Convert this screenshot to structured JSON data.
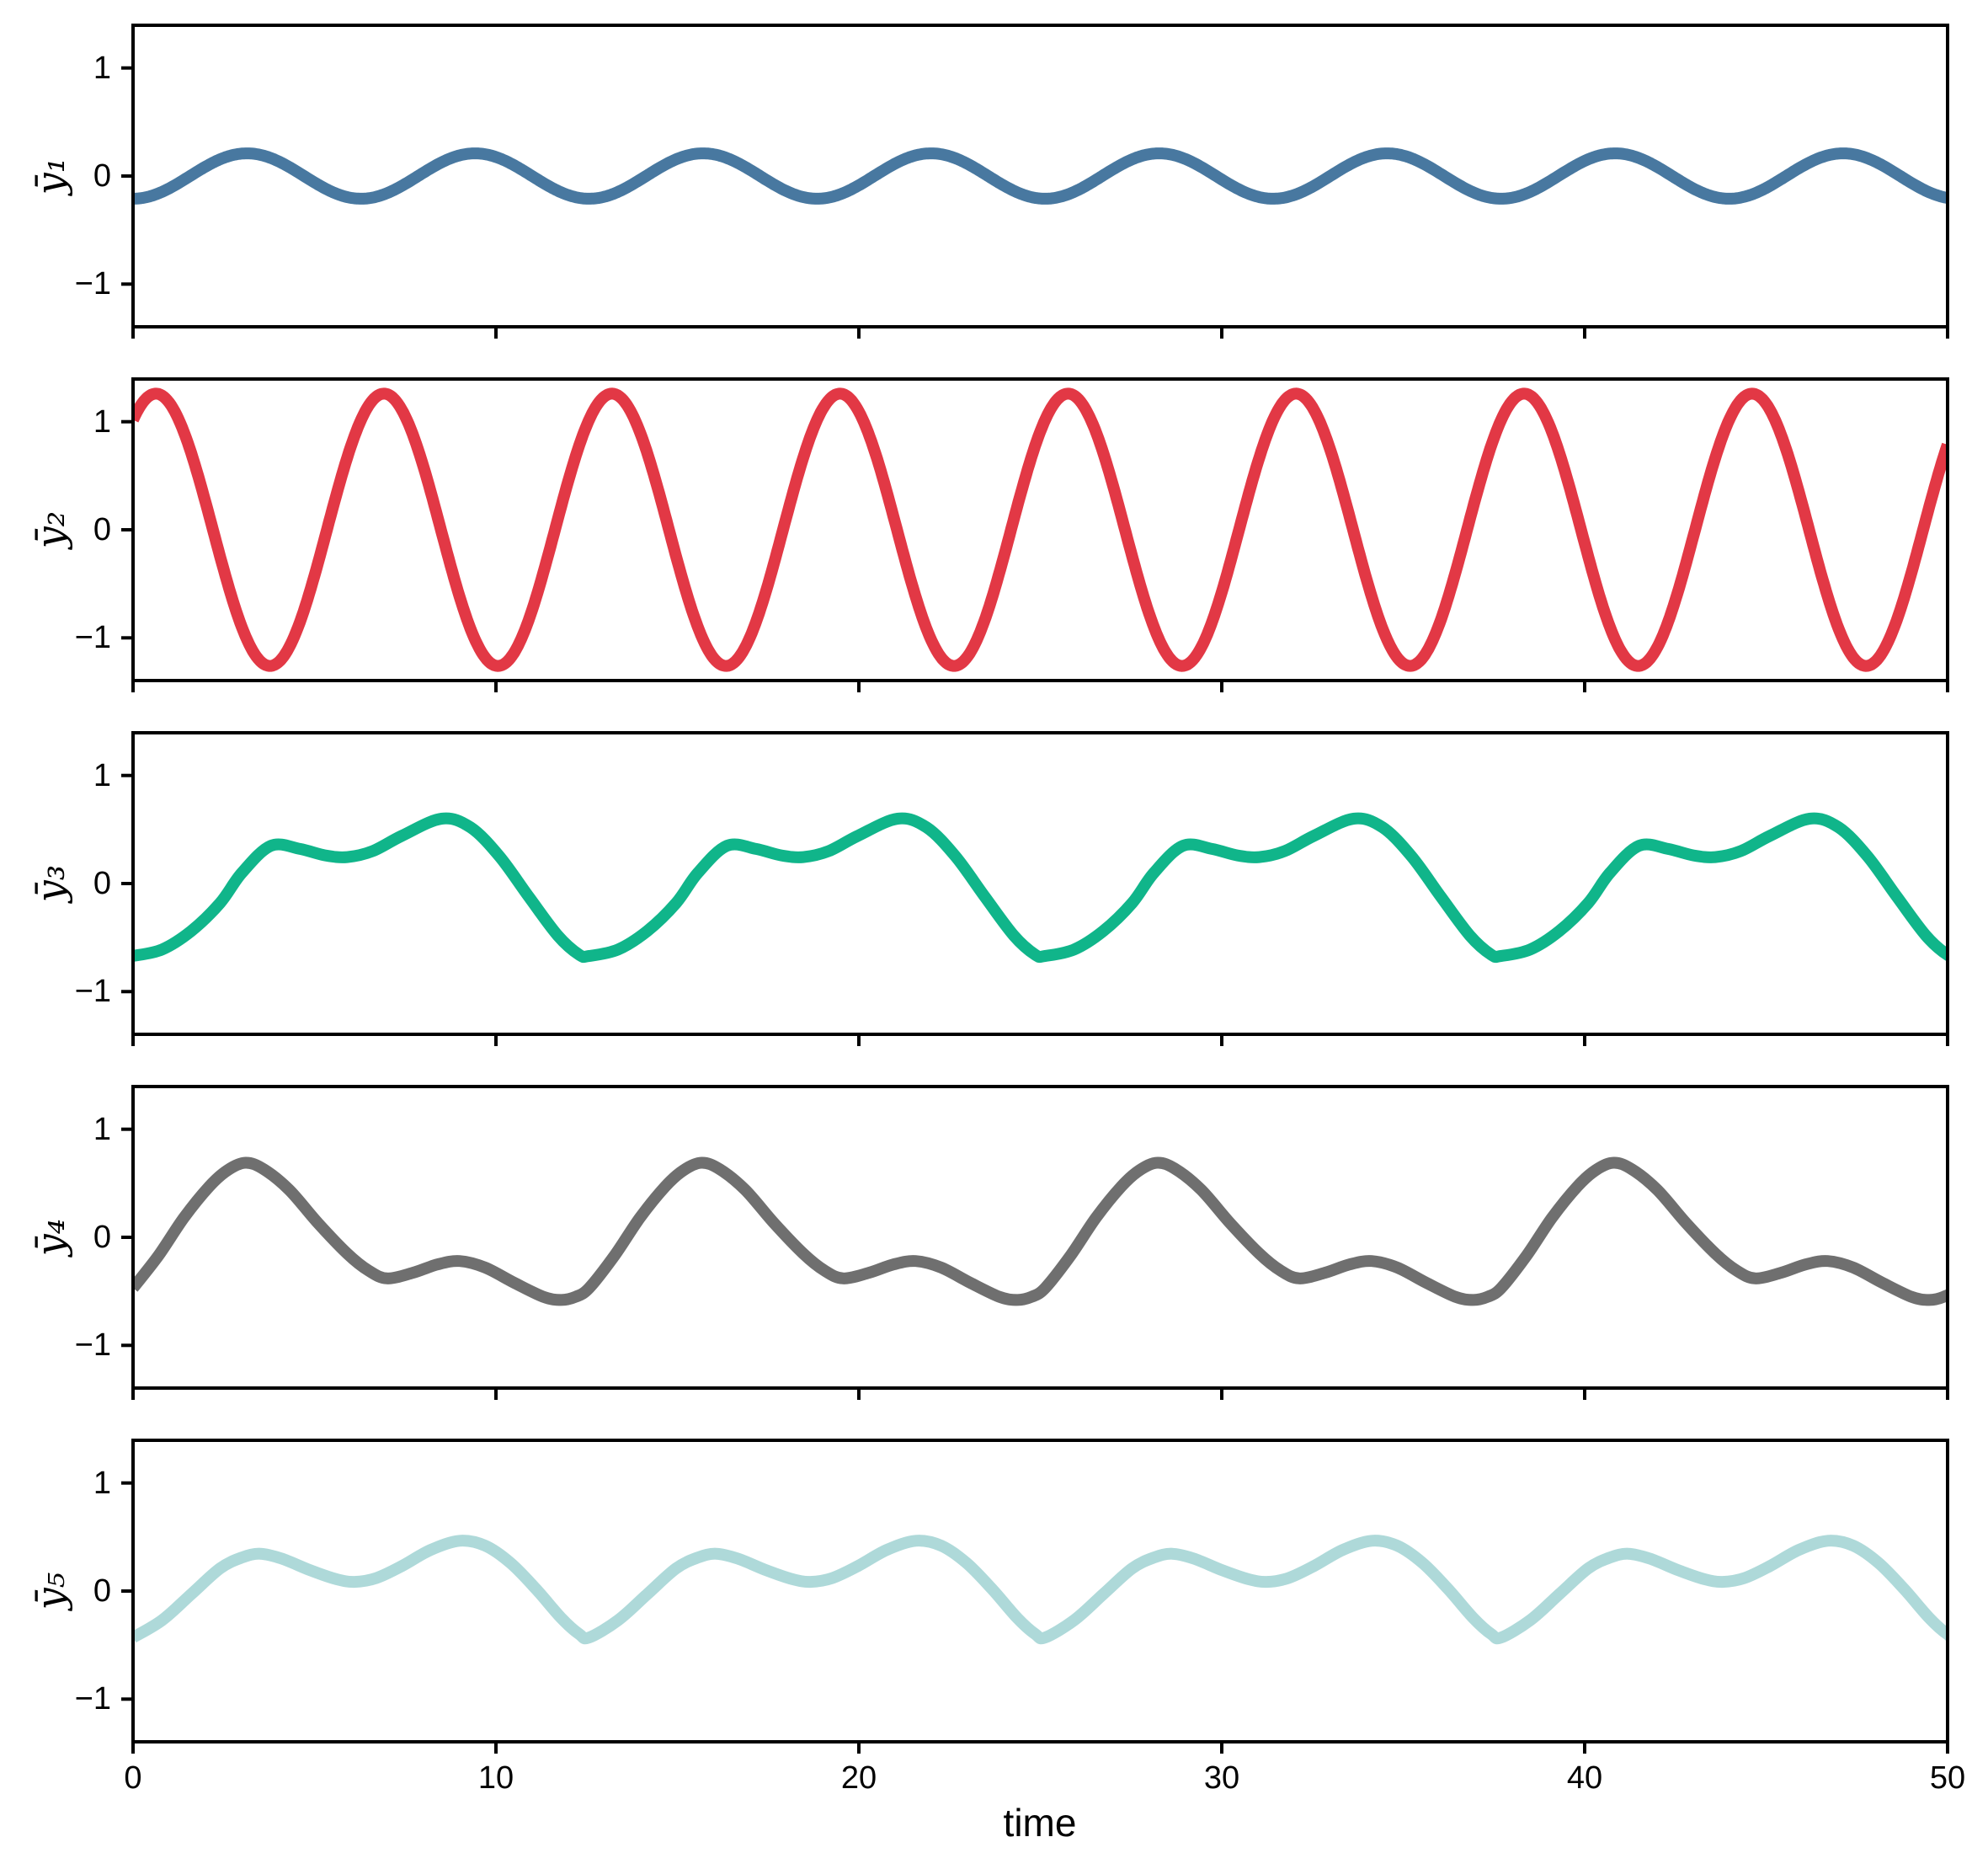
{
  "figure": {
    "background": "#ffffff",
    "spine_color": "#000000",
    "n_subplots": 5
  },
  "chart_data": {
    "type": "line",
    "title": "",
    "xlabel": "time",
    "ylabel_per_panel": [
      "ȳ₁",
      "ȳ₂",
      "ȳ₃",
      "ȳ₄",
      "ȳ₅"
    ],
    "x_range": [
      0,
      50
    ],
    "y_range": [
      -1.4,
      1.4
    ],
    "x_ticks": [
      0,
      10,
      20,
      30,
      40,
      50
    ],
    "x_tick_labels": [
      "0",
      "10",
      "20",
      "30",
      "40",
      "50"
    ],
    "y_ticks": [
      1,
      0,
      -1
    ],
    "y_tick_labels": [
      "1",
      "0",
      "−1"
    ],
    "grid": false,
    "legend": "none",
    "line_width": 14,
    "series": [
      {
        "name": "y1",
        "label": "ȳ₁",
        "color": "#4878a0",
        "model": "sinusoid",
        "components": [
          {
            "amplitude": 0.21,
            "omega": 1.0,
            "phase": -1.5708
          }
        ]
      },
      {
        "name": "y2",
        "label": "ȳ₂",
        "color": "#e23845",
        "model": "sinusoid",
        "components": [
          {
            "amplitude": 1.26,
            "omega": 1.0,
            "phase": 0.94
          }
        ]
      },
      {
        "name": "y3",
        "label": "ȳ₃",
        "color": "#10b58a",
        "model": "periodic_samples",
        "period": 12.566,
        "samples": [
          [
            0,
            -0.67
          ],
          [
            0.8,
            -0.61
          ],
          [
            1.6,
            -0.44
          ],
          [
            2.4,
            -0.18
          ],
          [
            3,
            0.1
          ],
          [
            3.8,
            0.35
          ],
          [
            4.6,
            0.32
          ],
          [
            5.3,
            0.26
          ],
          [
            5.9,
            0.245
          ],
          [
            6.6,
            0.3
          ],
          [
            7.4,
            0.44
          ],
          [
            8.5,
            0.6
          ],
          [
            9.3,
            0.52
          ],
          [
            10.1,
            0.25
          ],
          [
            10.9,
            -0.12
          ],
          [
            11.7,
            -0.48
          ],
          [
            12.3,
            -0.66
          ]
        ]
      },
      {
        "name": "y4",
        "label": "ȳ₄",
        "color": "#6f6f6f",
        "model": "periodic_samples",
        "period": 12.566,
        "samples": [
          [
            0,
            -0.47
          ],
          [
            0.7,
            -0.17
          ],
          [
            1.4,
            0.18
          ],
          [
            2.1,
            0.47
          ],
          [
            2.6,
            0.62
          ],
          [
            3.1,
            0.69
          ],
          [
            3.6,
            0.63
          ],
          [
            4.3,
            0.44
          ],
          [
            5.1,
            0.13
          ],
          [
            5.9,
            -0.15
          ],
          [
            6.5,
            -0.31
          ],
          [
            7,
            -0.38
          ],
          [
            7.7,
            -0.33
          ],
          [
            8.4,
            -0.25
          ],
          [
            9,
            -0.22
          ],
          [
            9.7,
            -0.28
          ],
          [
            10.5,
            -0.42
          ],
          [
            11.3,
            -0.55
          ],
          [
            11.8,
            -0.58
          ],
          [
            12.2,
            -0.55
          ]
        ]
      },
      {
        "name": "y5",
        "label": "ȳ₅",
        "color": "#aed9d9",
        "model": "periodic_samples",
        "period": 12.566,
        "samples": [
          [
            0,
            -0.43
          ],
          [
            0.8,
            -0.27
          ],
          [
            1.6,
            -0.03
          ],
          [
            2.4,
            0.21
          ],
          [
            3,
            0.31
          ],
          [
            3.5,
            0.345
          ],
          [
            4.1,
            0.3
          ],
          [
            4.9,
            0.19
          ],
          [
            5.6,
            0.11
          ],
          [
            6.1,
            0.085
          ],
          [
            6.7,
            0.12
          ],
          [
            7.4,
            0.23
          ],
          [
            8.2,
            0.38
          ],
          [
            9,
            0.465
          ],
          [
            9.7,
            0.42
          ],
          [
            10.4,
            0.26
          ],
          [
            11.1,
            0.02
          ],
          [
            11.8,
            -0.25
          ],
          [
            12.3,
            -0.4
          ]
        ]
      }
    ]
  }
}
